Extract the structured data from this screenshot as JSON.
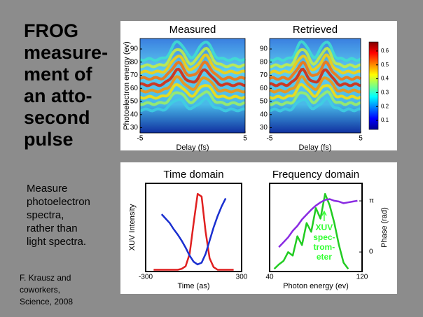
{
  "title_lines": [
    "FROG",
    "measure-",
    "ment of",
    "an atto-",
    "second",
    "pulse"
  ],
  "caption_lines": [
    "Measure",
    "photoelectron",
    "spectra,",
    "rather than",
    "light spectra."
  ],
  "credit_lines": [
    "F. Krausz and",
    "coworkers,",
    "Science, 2008"
  ],
  "chart_data": [
    {
      "type": "heatmap",
      "title": "Measured",
      "xlabel": "Delay (fs)",
      "ylabel": "Photoelectron energy (ev)",
      "xlim": [
        -5,
        5
      ],
      "xticks": [
        -5,
        5
      ],
      "ylim": [
        26,
        98
      ],
      "yticks": [
        30,
        40,
        50,
        60,
        70,
        80,
        90
      ]
    },
    {
      "type": "heatmap",
      "title": "Retrieved",
      "xlabel": "Delay (fs)",
      "xlim": [
        -5,
        5
      ],
      "xticks": [
        -5,
        5
      ],
      "ylim": [
        26,
        98
      ],
      "yticks": [
        30,
        40,
        50,
        60,
        70,
        80,
        90
      ],
      "colorbar": {
        "lim": [
          0.035,
          0.665
        ],
        "ticks": [
          0.1,
          0.2,
          0.3,
          0.4,
          0.5,
          0.6
        ]
      }
    },
    {
      "type": "line",
      "title": "Time domain",
      "xlabel": "Time (as)",
      "ylabel": "XUV Intensity",
      "xlim": [
        -300,
        300
      ],
      "xticks": [
        -300,
        300
      ],
      "ylim": [
        0,
        1
      ],
      "x": [
        -250,
        -225,
        -200,
        -175,
        -150,
        -125,
        -100,
        -75,
        -50,
        -25,
        0,
        25,
        50,
        75,
        100,
        125,
        150,
        175,
        200,
        225,
        250
      ],
      "series": [
        {
          "color": "#e02020",
          "values": [
            0.02,
            0.02,
            0.02,
            0.02,
            0.02,
            0.02,
            0.02,
            0.03,
            0.06,
            0.2,
            0.55,
            0.88,
            0.85,
            0.45,
            0.15,
            0.05,
            0.02,
            0.02,
            0.02,
            0.02,
            0.02
          ]
        },
        {
          "color": "#1a2fd0",
          "values": [
            null,
            null,
            0.65,
            0.6,
            0.55,
            0.48,
            0.42,
            0.35,
            0.27,
            0.18,
            0.11,
            0.08,
            0.1,
            0.2,
            0.35,
            0.5,
            0.63,
            0.74,
            0.83,
            null,
            null
          ]
        }
      ]
    },
    {
      "type": "line",
      "title": "Frequency domain",
      "xlabel": "Photon energy (ev)",
      "y2label": "Phase (rad)",
      "xlim": [
        40,
        120
      ],
      "xticks": [
        40,
        120
      ],
      "ylim": [
        0,
        1
      ],
      "y2lim": [
        -1.2,
        4.22
      ],
      "y2ticks": [
        0,
        {
          "value": 3.14159,
          "label": "π"
        }
      ],
      "annotation": [
        "XUV",
        "spec-",
        "trom-",
        "eter"
      ],
      "x": [
        44,
        48,
        52,
        56,
        60,
        64,
        68,
        72,
        76,
        80,
        84,
        88,
        92,
        96,
        100,
        104,
        108,
        112,
        116
      ],
      "series": [
        {
          "color": "#22cc22",
          "values": [
            0.03,
            0.08,
            0.12,
            0.22,
            0.18,
            0.4,
            0.3,
            0.55,
            0.45,
            0.72,
            0.6,
            0.88,
            0.75,
            0.55,
            0.3,
            0.1,
            0.03,
            null,
            null
          ]
        },
        {
          "color": "#8a2be2",
          "axis": "y2",
          "values": [
            null,
            0.3,
            0.6,
            0.9,
            1.3,
            1.6,
            2.0,
            2.3,
            2.6,
            2.85,
            3.05,
            3.2,
            3.25,
            3.15,
            3.1,
            3.0,
            3.05,
            3.1,
            3.15
          ]
        }
      ]
    }
  ]
}
